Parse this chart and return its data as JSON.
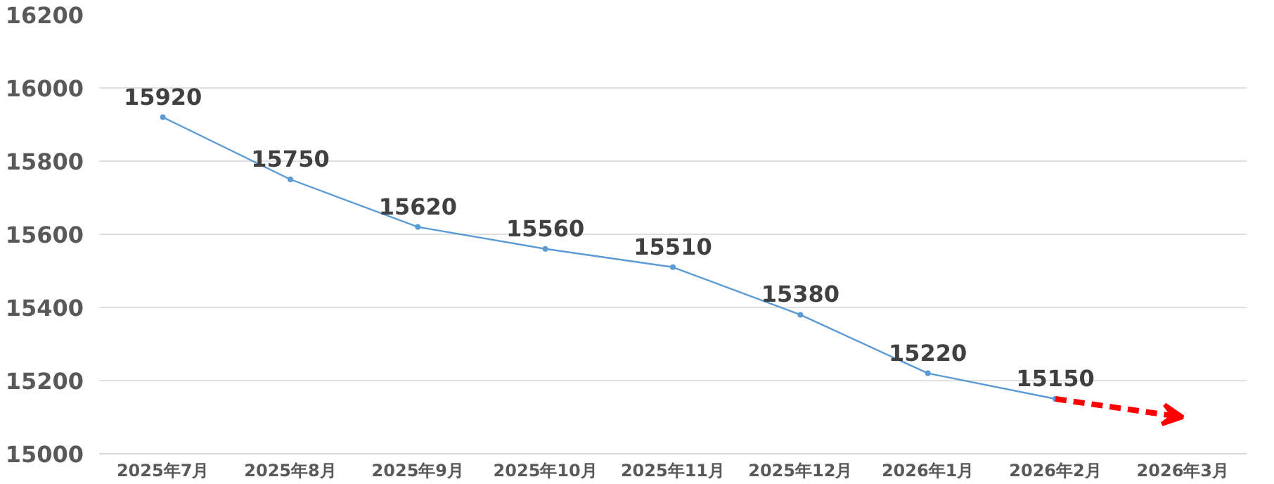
{
  "chart_data": {
    "type": "line",
    "categories": [
      "2025年7月",
      "2025年8月",
      "2025年9月",
      "2025年10月",
      "2025年11月",
      "2025年12月",
      "2026年1月",
      "2026年2月",
      "2026年3月"
    ],
    "series": [
      {
        "color": "#5b9bd5",
        "values": [
          15920,
          15750,
          15620,
          15560,
          15510,
          15380,
          15220,
          15150,
          null
        ],
        "marker": "circle",
        "line_style": "solid",
        "data_labels": true
      },
      {
        "color": "#ff0000",
        "values": [
          null,
          null,
          null,
          null,
          null,
          null,
          null,
          15150,
          15100
        ],
        "line_style": "dashed"
      }
    ],
    "ylim": [
      15000,
      16200
    ],
    "yticks": [
      15000,
      15200,
      15400,
      15600,
      15800,
      16000,
      16200
    ],
    "grid": "y"
  }
}
